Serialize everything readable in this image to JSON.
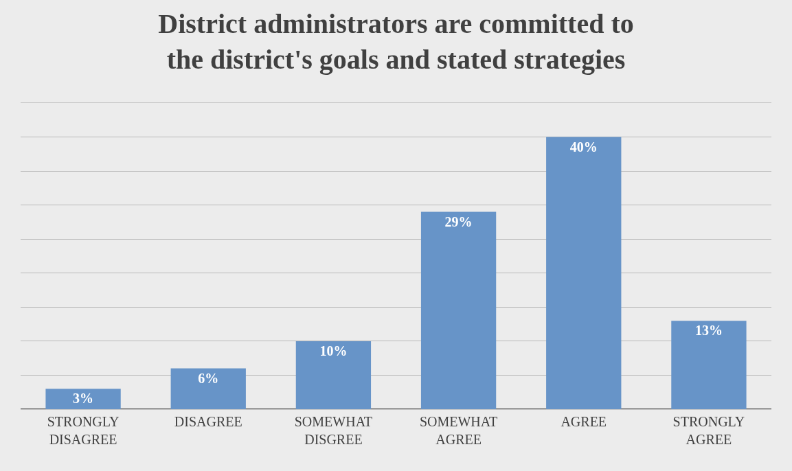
{
  "chart_data": {
    "type": "bar",
    "title": "District administrators are committed to\nthe district's goals and stated strategies",
    "categories": [
      "STRONGLY DISAGREE",
      "DISAGREE",
      "SOMEWHAT DISGREE",
      "SOMEWHAT AGREE",
      "AGREE",
      "STRONGLY AGREE"
    ],
    "values": [
      3,
      6,
      10,
      29,
      40,
      13
    ],
    "value_labels": [
      "3%",
      "6%",
      "10%",
      "29%",
      "40%",
      "13%"
    ],
    "color": "#6794c8",
    "ylim": [
      0,
      45
    ],
    "yticks": [
      {
        "value": 0,
        "label": null
      },
      {
        "value": 5,
        "label": null
      },
      {
        "value": 10,
        "label": null
      },
      {
        "value": 15,
        "label": null
      },
      {
        "value": 20,
        "label": null
      },
      {
        "value": 25,
        "label": null
      },
      {
        "value": 30,
        "label": null
      },
      {
        "value": 35,
        "label": null
      },
      {
        "value": 40,
        "label": null
      },
      {
        "value": 45,
        "label": null
      }
    ],
    "grid": "y",
    "legend": false,
    "tick_labels": "x"
  }
}
